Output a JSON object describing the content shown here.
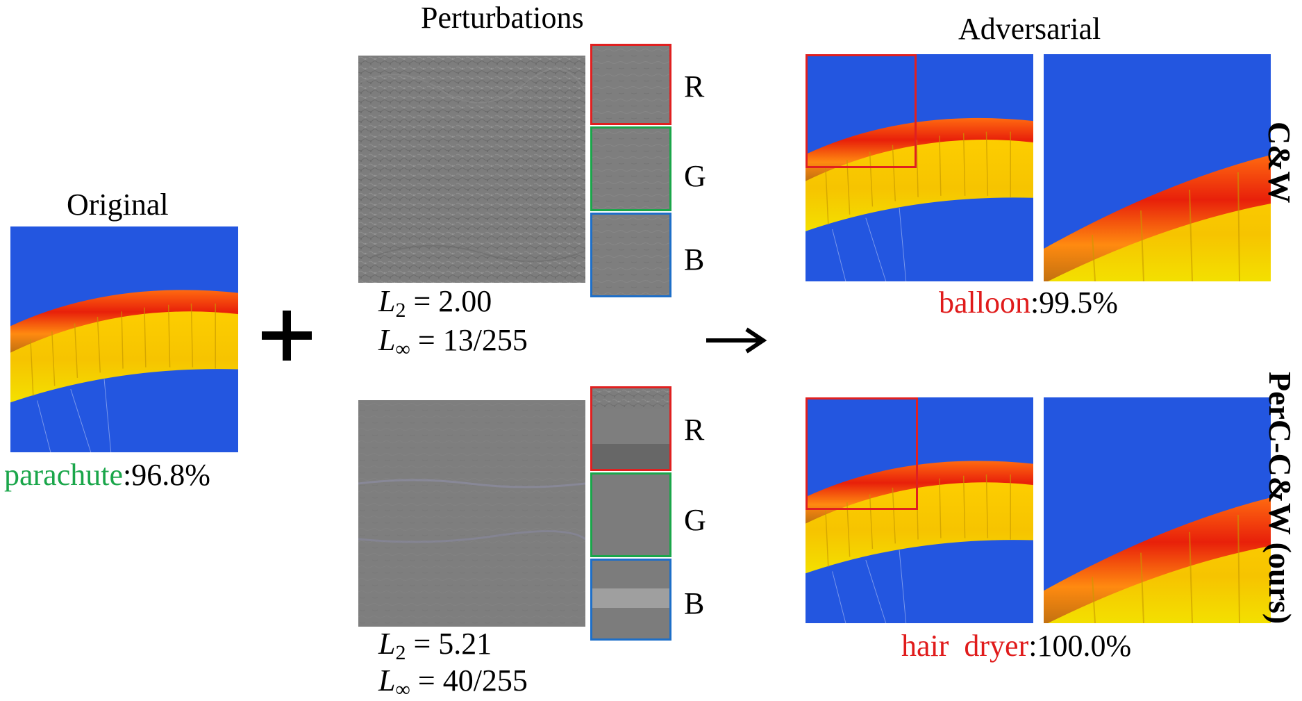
{
  "original": {
    "title": "Original",
    "label_class": "parachute",
    "label_sep": ":",
    "label_conf": "96.8%"
  },
  "operators": {
    "plus": "+",
    "arrow": "→"
  },
  "perturbations": {
    "title": "Perturbations",
    "channels": [
      "R",
      "G",
      "B"
    ],
    "top": {
      "l2_symbol": "L",
      "l2_sub": "2",
      "l2_value": "=  2.00",
      "linf_symbol": "L",
      "linf_sub": "∞",
      "linf_value": "= 13/255"
    },
    "bottom": {
      "l2_symbol": "L",
      "l2_sub": "2",
      "l2_value": "=  5.21",
      "linf_symbol": "L",
      "linf_sub": "∞",
      "linf_value": "= 40/255"
    }
  },
  "adversarial": {
    "title": "Adversarial",
    "rows": [
      {
        "method": "C&W",
        "label_class": "balloon",
        "label_sep": ":",
        "label_conf": "99.5%"
      },
      {
        "method": "PerC-C&W (ours)",
        "label_class": "hair  dryer",
        "label_sep": ":",
        "label_conf": "100.0%"
      }
    ]
  },
  "colors": {
    "sky": "#2356e0",
    "label_green": "#1aa64a",
    "label_red": "#e01b1b",
    "frame_red": "#e02020",
    "frame_green": "#1aa64a",
    "frame_blue": "#1e6fc8",
    "perturb_gray": "#7d7d7d"
  }
}
